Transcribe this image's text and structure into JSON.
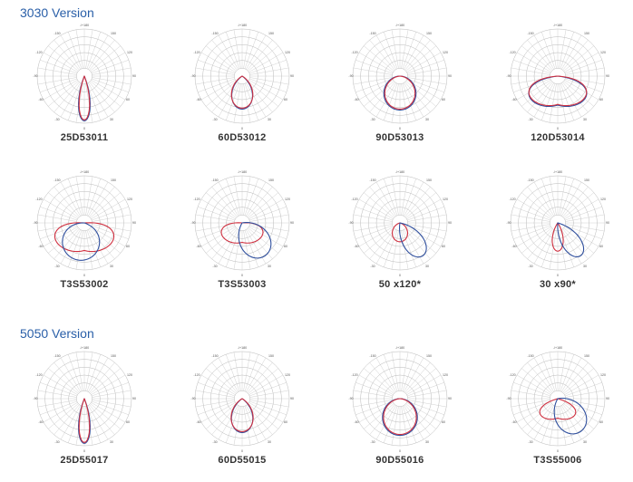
{
  "sections": [
    {
      "title": "3030 Version",
      "diagrams": [
        {
          "label": "25D53011",
          "curves": [
            {
              "color": "#2f4f9e",
              "half": 12,
              "reach": 0.95,
              "shape": "lobe"
            },
            {
              "color": "#d03040",
              "half": 11,
              "reach": 0.93,
              "shape": "lobe"
            }
          ]
        },
        {
          "label": "60D53012",
          "curves": [
            {
              "color": "#2f4f9e",
              "half": 30,
              "reach": 0.7,
              "shape": "lobe"
            },
            {
              "color": "#d03040",
              "half": 32,
              "reach": 0.68,
              "shape": "lobe"
            }
          ]
        },
        {
          "label": "90D53013",
          "curves": [
            {
              "color": "#2f4f9e",
              "half": 48,
              "reach": 0.72,
              "shape": "lobe"
            },
            {
              "color": "#d03040",
              "half": 46,
              "reach": 0.7,
              "shape": "lobe"
            }
          ]
        },
        {
          "label": "120D53014",
          "curves": [
            {
              "color": "#2f4f9e",
              "half": 62,
              "reach": 0.82,
              "shape": "wide"
            },
            {
              "color": "#d03040",
              "half": 64,
              "reach": 0.8,
              "shape": "wide"
            }
          ]
        },
        {
          "label": "T3S53002",
          "curves": [
            {
              "color": "#d03040",
              "half": 70,
              "reach": 0.78,
              "shape": "wide"
            },
            {
              "color": "#2f4f9e",
              "half": 40,
              "reach": 0.8,
              "shape": "skew"
            }
          ]
        },
        {
          "label": "T3S53003",
          "curves": [
            {
              "color": "#d03040",
              "half": 70,
              "reach": 0.55,
              "shape": "wide"
            },
            {
              "color": "#2f4f9e",
              "half": 30,
              "reach": 0.85,
              "shape": "skewside"
            }
          ]
        },
        {
          "label": "50 x120*",
          "curves": [
            {
              "color": "#d03040",
              "half": 40,
              "reach": 0.4,
              "shape": "lobe"
            },
            {
              "color": "#2f4f9e",
              "half": 20,
              "reach": 0.85,
              "shape": "skewside"
            }
          ]
        },
        {
          "label": "30 x90*",
          "curves": [
            {
              "color": "#d03040",
              "half": 18,
              "reach": 0.6,
              "shape": "lobe"
            },
            {
              "color": "#2f4f9e",
              "half": 18,
              "reach": 0.85,
              "shape": "skewside"
            }
          ]
        }
      ]
    },
    {
      "title": "5050 Version",
      "diagrams": [
        {
          "label": "25D55017",
          "curves": [
            {
              "color": "#2f4f9e",
              "half": 12,
              "reach": 0.95,
              "shape": "lobe"
            },
            {
              "color": "#d03040",
              "half": 11,
              "reach": 0.93,
              "shape": "lobe"
            }
          ]
        },
        {
          "label": "60D55015",
          "curves": [
            {
              "color": "#2f4f9e",
              "half": 30,
              "reach": 0.72,
              "shape": "lobe"
            },
            {
              "color": "#d03040",
              "half": 32,
              "reach": 0.7,
              "shape": "lobe"
            }
          ]
        },
        {
          "label": "90D55016",
          "curves": [
            {
              "color": "#2f4f9e",
              "half": 48,
              "reach": 0.78,
              "shape": "lobe"
            },
            {
              "color": "#d03040",
              "half": 46,
              "reach": 0.76,
              "shape": "lobe"
            }
          ]
        },
        {
          "label": "T3S55006",
          "curves": [
            {
              "color": "#d03040",
              "half": 55,
              "reach": 0.55,
              "shape": "wide"
            },
            {
              "color": "#2f4f9e",
              "half": 30,
              "reach": 0.85,
              "shape": "skewside"
            }
          ]
        }
      ]
    }
  ],
  "axis_labels": {
    "top": "-/+180",
    "upper_left": "-150",
    "upper_right": "150",
    "mid_upper_left": "-120",
    "mid_upper_right": "120",
    "left": "-90",
    "right": "90",
    "lower_left": "-60",
    "lower_right": "60",
    "bottom_left": "-30",
    "bottom_right": "30",
    "bottom": "0"
  }
}
